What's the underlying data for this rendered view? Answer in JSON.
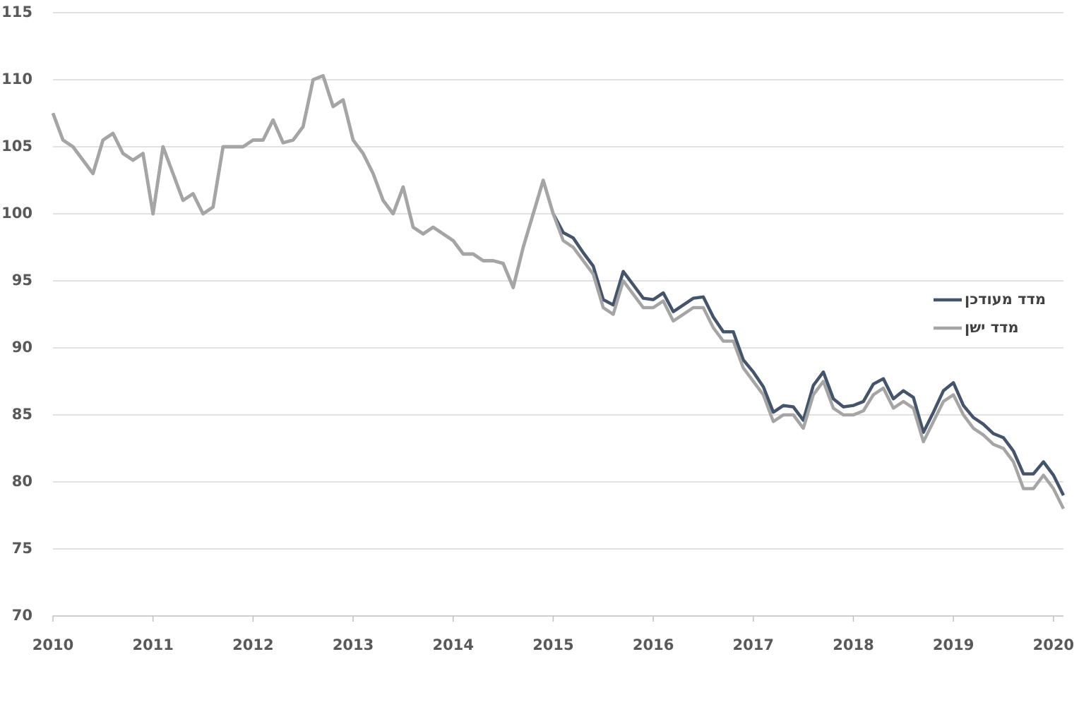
{
  "chart_data": {
    "type": "line",
    "x": [
      2010.0,
      2010.1,
      2010.2,
      2010.3,
      2010.4,
      2010.5,
      2010.6,
      2010.7,
      2010.8,
      2010.9,
      2011.0,
      2011.1,
      2011.2,
      2011.3,
      2011.4,
      2011.5,
      2011.6,
      2011.7,
      2011.8,
      2011.9,
      2012.0,
      2012.1,
      2012.2,
      2012.3,
      2012.4,
      2012.5,
      2012.6,
      2012.7,
      2012.8,
      2012.9,
      2013.0,
      2013.1,
      2013.2,
      2013.3,
      2013.4,
      2013.5,
      2013.6,
      2013.7,
      2013.8,
      2013.9,
      2014.0,
      2014.1,
      2014.2,
      2014.3,
      2014.4,
      2014.5,
      2014.6,
      2014.7,
      2014.8,
      2014.9,
      2015.0,
      2015.1,
      2015.2,
      2015.3,
      2015.4,
      2015.5,
      2015.6,
      2015.7,
      2015.8,
      2015.9,
      2016.0,
      2016.1,
      2016.2,
      2016.3,
      2016.4,
      2016.5,
      2016.6,
      2016.7,
      2016.8,
      2016.9,
      2017.0,
      2017.1,
      2017.2,
      2017.3,
      2017.4,
      2017.5,
      2017.6,
      2017.7,
      2017.8,
      2017.9,
      2018.0,
      2018.1,
      2018.2,
      2018.3,
      2018.4,
      2018.5,
      2018.6,
      2018.7,
      2018.8,
      2018.9,
      2019.0,
      2019.1,
      2019.2,
      2019.3,
      2019.4,
      2019.5,
      2019.6,
      2019.7,
      2019.8,
      2019.9,
      2020.0,
      2020.1
    ],
    "series": [
      {
        "name": "מדד מעודכן",
        "color": "#44546a",
        "values": [
          107.5,
          105.5,
          105,
          104,
          103,
          105.5,
          106,
          104.5,
          104,
          104.5,
          100,
          105,
          103,
          101,
          101.5,
          100,
          100.5,
          105,
          105,
          105,
          105.5,
          105.5,
          107,
          105.3,
          105.5,
          106.5,
          110,
          110.3,
          108,
          108.5,
          105.5,
          104.5,
          103,
          101,
          100,
          102,
          99,
          98.5,
          99,
          98.5,
          98,
          97,
          97,
          96.5,
          96.5,
          96.3,
          94.5,
          97.5,
          100,
          102.5,
          100,
          98.6,
          98.2,
          97.1,
          96.1,
          93.6,
          93.2,
          95.7,
          94.7,
          93.7,
          93.6,
          94.1,
          92.7,
          93.2,
          93.7,
          93.8,
          92.3,
          91.2,
          91.2,
          89.1,
          88.2,
          87.1,
          85.2,
          85.7,
          85.6,
          84.6,
          87.2,
          88.2,
          86.2,
          85.6,
          85.7,
          86.0,
          87.3,
          87.7,
          86.2,
          86.8,
          86.3,
          83.7,
          85.2,
          86.8,
          87.4,
          85.7,
          84.8,
          84.3,
          83.6,
          83.3,
          82.3,
          80.6,
          80.6,
          81.5,
          80.5,
          79
        ]
      },
      {
        "name": "מדד ישן",
        "color": "#a5a5a5",
        "values": [
          107.5,
          105.5,
          105,
          104,
          103,
          105.5,
          106,
          104.5,
          104,
          104.5,
          100,
          105,
          103,
          101,
          101.5,
          100,
          100.5,
          105,
          105,
          105,
          105.5,
          105.5,
          107,
          105.3,
          105.5,
          106.5,
          110,
          110.3,
          108,
          108.5,
          105.5,
          104.5,
          103,
          101,
          100,
          102,
          99,
          98.5,
          99,
          98.5,
          98,
          97,
          97,
          96.5,
          96.5,
          96.3,
          94.5,
          97.5,
          100,
          102.5,
          100,
          98,
          97.5,
          96.5,
          95.5,
          93,
          92.5,
          95,
          94,
          93,
          93,
          93.5,
          92,
          92.5,
          93,
          93,
          91.5,
          90.5,
          90.5,
          88.5,
          87.5,
          86.5,
          84.5,
          85,
          85,
          84,
          86.5,
          87.5,
          85.5,
          85,
          85,
          85.3,
          86.5,
          87,
          85.5,
          86,
          85.5,
          83,
          84.5,
          86,
          86.5,
          85,
          84,
          83.5,
          82.8,
          82.5,
          81.5,
          79.5,
          79.5,
          80.5,
          79.5,
          78
        ]
      }
    ],
    "xlim": [
      2010,
      2020.1
    ],
    "xticks": [
      2010,
      2011,
      2012,
      2013,
      2014,
      2015,
      2016,
      2017,
      2018,
      2019,
      2020
    ],
    "ylim": [
      70,
      115
    ],
    "yticks": [
      70,
      75,
      80,
      85,
      90,
      95,
      100,
      105,
      110,
      115
    ],
    "grid": true,
    "legend": "right"
  }
}
